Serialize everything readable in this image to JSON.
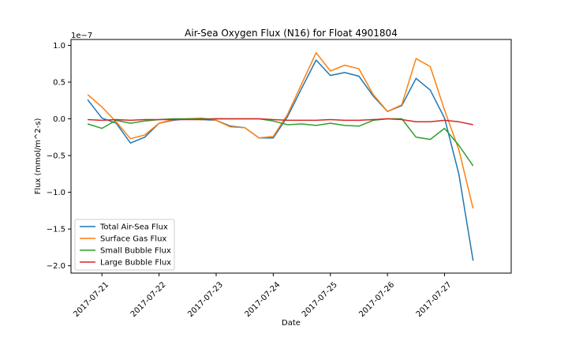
{
  "chart_data": {
    "type": "line",
    "title": "Air-Sea Oxygen Flux (N16) for Float 4901804",
    "xlabel": "Date",
    "ylabel": "Flux (mmol/m^2-s)",
    "y_scale_label": "1e−7",
    "x_tick_labels": [
      "2017-07-21",
      "2017-07-22",
      "2017-07-23",
      "2017-07-24",
      "2017-07-25",
      "2017-07-26",
      "2017-07-27"
    ],
    "y_tick_labels": [
      "1.0",
      "0.5",
      "0.0",
      "−0.5",
      "−1.0",
      "−1.5",
      "−2.0"
    ],
    "y_ticks": [
      1.0,
      0.5,
      0.0,
      -0.5,
      -1.0,
      -1.5,
      -2.0
    ],
    "xlim": [
      "2017-07-20T11:00",
      "2017-07-28T04:00"
    ],
    "ylim": [
      -2.1,
      1.08
    ],
    "grid": false,
    "legend_position": "lower-left",
    "x": [
      "2017-07-20T18:00",
      "2017-07-21T00:00",
      "2017-07-21T06:00",
      "2017-07-21T12:00",
      "2017-07-21T18:00",
      "2017-07-22T00:00",
      "2017-07-22T06:00",
      "2017-07-22T12:00",
      "2017-07-22T18:00",
      "2017-07-23T00:00",
      "2017-07-23T06:00",
      "2017-07-23T12:00",
      "2017-07-23T18:00",
      "2017-07-24T00:00",
      "2017-07-24T06:00",
      "2017-07-24T12:00",
      "2017-07-24T18:00",
      "2017-07-25T00:00",
      "2017-07-25T06:00",
      "2017-07-25T12:00",
      "2017-07-25T18:00",
      "2017-07-26T00:00",
      "2017-07-26T06:00",
      "2017-07-26T12:00",
      "2017-07-26T18:00",
      "2017-07-27T00:00",
      "2017-07-27T06:00",
      "2017-07-27T12:00"
    ],
    "series": [
      {
        "name": "Total Air-Sea Flux",
        "color": "#1f77b4",
        "values": [
          0.26,
          0.01,
          -0.06,
          -0.33,
          -0.25,
          -0.06,
          -0.02,
          0.0,
          -0.01,
          -0.02,
          -0.1,
          -0.12,
          -0.26,
          -0.26,
          0.03,
          0.42,
          0.8,
          0.59,
          0.63,
          0.58,
          0.31,
          0.1,
          0.18,
          0.55,
          0.39,
          0.01,
          -0.75,
          -1.93
        ]
      },
      {
        "name": "Surface Gas Flux",
        "color": "#ff7f0e",
        "values": [
          0.33,
          0.16,
          -0.04,
          -0.27,
          -0.22,
          -0.06,
          -0.01,
          0.0,
          0.01,
          -0.02,
          -0.11,
          -0.12,
          -0.26,
          -0.24,
          0.06,
          0.48,
          0.9,
          0.65,
          0.73,
          0.68,
          0.33,
          0.1,
          0.19,
          0.82,
          0.71,
          0.12,
          -0.42,
          -1.22
        ]
      },
      {
        "name": "Small Bubble Flux",
        "color": "#2ca02c",
        "values": [
          -0.07,
          -0.13,
          -0.02,
          -0.06,
          -0.03,
          -0.01,
          0.0,
          0.0,
          0.0,
          0.0,
          0.0,
          0.0,
          0.0,
          -0.03,
          -0.08,
          -0.07,
          -0.09,
          -0.06,
          -0.09,
          -0.1,
          -0.02,
          0.0,
          0.0,
          -0.25,
          -0.28,
          -0.13,
          -0.36,
          -0.64
        ]
      },
      {
        "name": "Large Bubble Flux",
        "color": "#d62728",
        "values": [
          -0.01,
          -0.02,
          -0.01,
          -0.02,
          -0.01,
          -0.01,
          -0.01,
          -0.01,
          -0.01,
          0.0,
          0.0,
          0.0,
          0.0,
          -0.01,
          -0.02,
          -0.02,
          -0.02,
          -0.01,
          -0.02,
          -0.02,
          -0.01,
          0.0,
          -0.01,
          -0.04,
          -0.04,
          -0.02,
          -0.04,
          -0.08
        ]
      }
    ]
  }
}
